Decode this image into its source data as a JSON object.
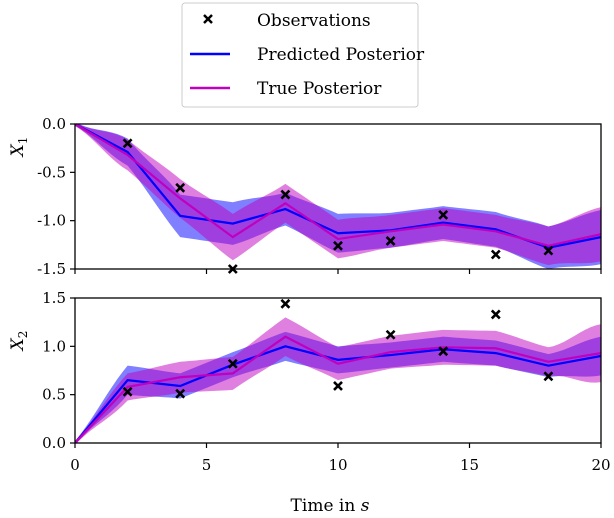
{
  "chart_data": [
    {
      "type": "line",
      "ylabel": "X",
      "ylabel_sub": "1",
      "xlim": [
        0,
        20
      ],
      "ylim": [
        -1.5,
        0.0
      ],
      "yticks": [
        "0.0",
        "-0.5",
        "-1.0",
        "-1.5"
      ],
      "ytick_values": [
        0.0,
        -0.5,
        -1.0,
        -1.5
      ],
      "grid": false,
      "observations": {
        "name": "Observations",
        "x": [
          2,
          4,
          6,
          8,
          10,
          12,
          14,
          16,
          18
        ],
        "y": [
          -0.2,
          -0.66,
          -1.5,
          -0.73,
          -1.26,
          -1.21,
          -0.94,
          -1.35,
          -1.31
        ]
      },
      "series": [
        {
          "name": "Predicted Posterior",
          "color": "#0000ff",
          "x": [
            0,
            2,
            4,
            6,
            8,
            10,
            12,
            14,
            16,
            18,
            20
          ],
          "y": [
            0,
            -0.29,
            -0.95,
            -1.03,
            -0.88,
            -1.13,
            -1.1,
            -1.02,
            -1.09,
            -1.28,
            -1.17
          ],
          "band": [
            0.02,
            0.14,
            0.22,
            0.22,
            0.17,
            0.2,
            0.18,
            0.17,
            0.18,
            0.22,
            0.28
          ]
        },
        {
          "name": "True Posterior",
          "color": "#bf00bf",
          "x": [
            0,
            2,
            4,
            6,
            8,
            10,
            12,
            14,
            16,
            18,
            20
          ],
          "y": [
            0,
            -0.32,
            -0.77,
            -1.17,
            -0.82,
            -1.19,
            -1.11,
            -1.04,
            -1.11,
            -1.26,
            -1.14
          ],
          "band": [
            0.02,
            0.16,
            0.2,
            0.24,
            0.2,
            0.2,
            0.17,
            0.17,
            0.17,
            0.2,
            0.28
          ]
        }
      ]
    },
    {
      "type": "line",
      "ylabel": "X",
      "ylabel_sub": "2",
      "xlabel": "Time in ",
      "xlabel_var": "s",
      "xlim": [
        0,
        20
      ],
      "ylim": [
        0.0,
        1.5
      ],
      "xticks": [
        "0",
        "5",
        "10",
        "15",
        "20"
      ],
      "xtick_values": [
        0,
        5,
        10,
        15,
        20
      ],
      "yticks": [
        "0.0",
        "0.5",
        "1.0",
        "1.5"
      ],
      "ytick_values": [
        0.0,
        0.5,
        1.0,
        1.5
      ],
      "grid": false,
      "observations": {
        "name": "Observations",
        "x": [
          2,
          4,
          6,
          8,
          10,
          12,
          14,
          16,
          18
        ],
        "y": [
          0.53,
          0.51,
          0.82,
          1.44,
          0.59,
          1.12,
          0.95,
          1.33,
          0.69
        ]
      },
      "series": [
        {
          "name": "Predicted Posterior",
          "color": "#0000ff",
          "x": [
            0,
            2,
            4,
            6,
            8,
            10,
            12,
            14,
            16,
            18,
            20
          ],
          "y": [
            0,
            0.65,
            0.59,
            0.81,
            1.0,
            0.86,
            0.91,
            0.97,
            0.93,
            0.8,
            0.9
          ],
          "band": [
            0.02,
            0.15,
            0.13,
            0.13,
            0.15,
            0.14,
            0.13,
            0.13,
            0.13,
            0.12,
            0.2
          ]
        },
        {
          "name": "True Posterior",
          "color": "#bf00bf",
          "x": [
            0,
            2,
            4,
            6,
            8,
            10,
            12,
            14,
            16,
            18,
            20
          ],
          "y": [
            0,
            0.58,
            0.68,
            0.72,
            1.1,
            0.82,
            0.94,
            0.99,
            0.98,
            0.84,
            0.93
          ],
          "band": [
            0.02,
            0.14,
            0.16,
            0.17,
            0.2,
            0.17,
            0.17,
            0.18,
            0.18,
            0.15,
            0.3
          ]
        }
      ]
    }
  ],
  "legend": {
    "placement": "top-center",
    "items": [
      {
        "label": "Observations",
        "marker": "x",
        "color": "#000000"
      },
      {
        "label": "Predicted Posterior",
        "marker": "line",
        "color": "#0000ff"
      },
      {
        "label": "True Posterior",
        "marker": "line",
        "color": "#bf00bf"
      }
    ]
  }
}
